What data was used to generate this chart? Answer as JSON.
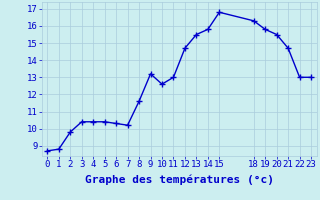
{
  "x": [
    0,
    1,
    2,
    3,
    4,
    5,
    6,
    7,
    8,
    9,
    10,
    11,
    12,
    13,
    14,
    15,
    18,
    19,
    20,
    21,
    22,
    23
  ],
  "y": [
    8.7,
    8.8,
    9.8,
    10.4,
    10.4,
    10.4,
    10.3,
    10.2,
    11.6,
    13.2,
    12.6,
    13.0,
    14.7,
    15.5,
    15.8,
    16.8,
    16.3,
    15.8,
    15.5,
    14.7,
    13.0,
    13.0
  ],
  "line_color": "#0000cc",
  "marker": "+",
  "marker_size": 4,
  "marker_linewidth": 1.0,
  "line_width": 1.0,
  "background_color": "#cceef0",
  "grid_color": "#aaccdd",
  "xlabel": "Graphe des températures (°c)",
  "xlabel_color": "#0000cc",
  "tick_color": "#0000cc",
  "xlabel_fontsize": 8,
  "tick_fontsize": 6.5,
  "xlim": [
    -0.5,
    23.5
  ],
  "ylim": [
    8.4,
    17.4
  ],
  "yticks": [
    9,
    10,
    11,
    12,
    13,
    14,
    15,
    16,
    17
  ],
  "xticks": [
    0,
    1,
    2,
    3,
    4,
    5,
    6,
    7,
    8,
    9,
    10,
    11,
    12,
    13,
    14,
    15,
    18,
    19,
    20,
    21,
    22,
    23
  ],
  "xtick_labels": [
    "0",
    "1",
    "2",
    "3",
    "4",
    "5",
    "6",
    "7",
    "8",
    "9",
    "10",
    "11",
    "12",
    "13",
    "14",
    "15",
    "18",
    "19",
    "20",
    "21",
    "22",
    "23"
  ]
}
